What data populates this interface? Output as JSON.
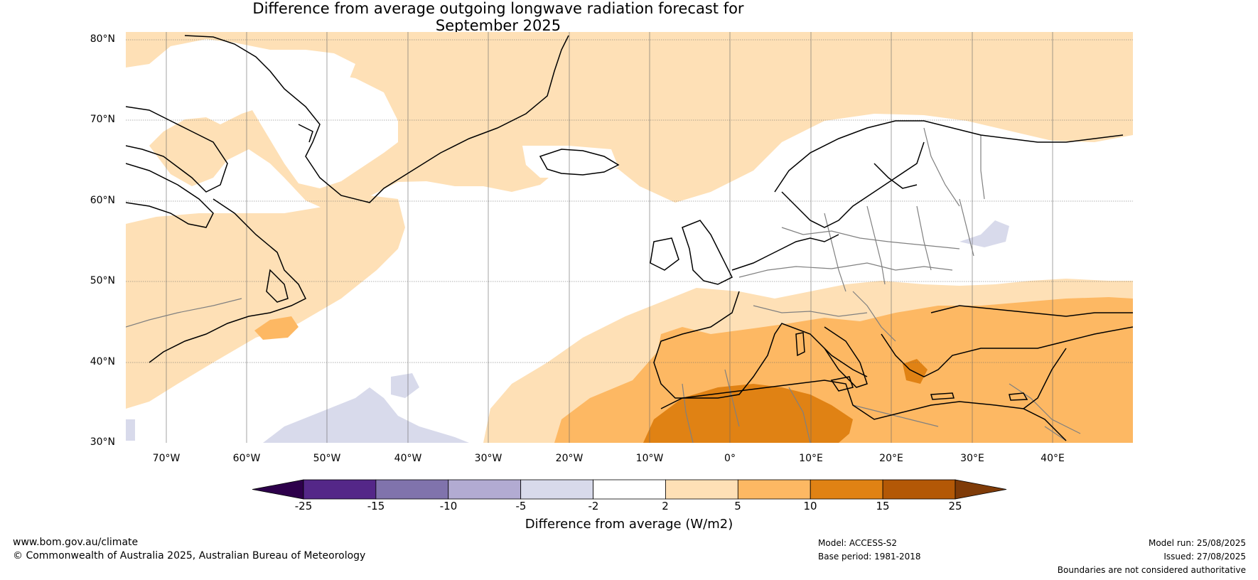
{
  "title_line1": "Difference from average outgoing longwave radiation forecast for",
  "title_line2": "September 2025",
  "map": {
    "lat_labels": [
      "80°N",
      "70°N",
      "60°N",
      "50°N",
      "40°N",
      "30°N"
    ],
    "lon_labels": [
      "70°W",
      "60°W",
      "50°W",
      "40°W",
      "30°W",
      "20°W",
      "10°W",
      "0°",
      "10°E",
      "20°E",
      "30°E",
      "40°E"
    ],
    "extent": {
      "lon_min": -75,
      "lon_max": 50,
      "lat_min": 30,
      "lat_max": 81
    }
  },
  "colorbar": {
    "ticks": [
      "-25",
      "-15",
      "-10",
      "-5",
      "-2",
      "2",
      "5",
      "10",
      "15",
      "25"
    ],
    "colors": [
      "#2d004b",
      "#542788",
      "#8073ac",
      "#b2abd2",
      "#d8daeb",
      "#ffffff",
      "#fee0b6",
      "#fdb863",
      "#e08214",
      "#b35806",
      "#7f3b08"
    ],
    "label": "Difference from average (W/m2)"
  },
  "footer": {
    "website": "www.bom.gov.au/climate",
    "copyright": "© Commonwealth of Australia 2025, Australian Bureau of Meteorology",
    "model": "Model: ACCESS-S2",
    "base_period": "Base period: 1981-2018",
    "model_run": "Model run: 25/08/2025",
    "issued": "Issued: 27/08/2025",
    "disclaimer": "Boundaries are not considered authoritative"
  }
}
